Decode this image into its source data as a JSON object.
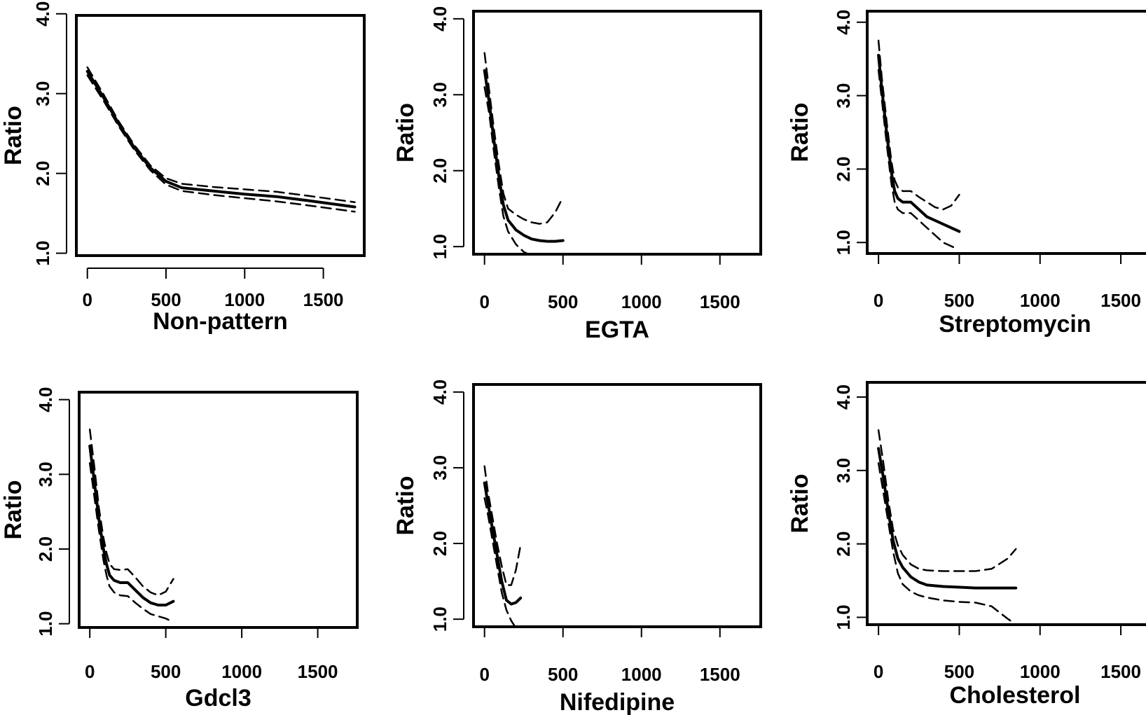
{
  "figure": {
    "panels": [
      {
        "xlabel": "Non-pattern",
        "ylabel": "Ratio"
      },
      {
        "xlabel": "EGTA",
        "ylabel": "Ratio"
      },
      {
        "xlabel": "Streptomycin",
        "ylabel": "Ratio"
      },
      {
        "xlabel": "Gdcl3",
        "ylabel": "Ratio"
      },
      {
        "xlabel": "Nifedipine",
        "ylabel": "Ratio"
      },
      {
        "xlabel": "Cholesterol",
        "ylabel": "Ratio"
      }
    ]
  },
  "chart_data": [
    {
      "type": "line",
      "title": "",
      "xlabel": "Non-pattern",
      "ylabel": "Ratio",
      "xlim": [
        -70,
        1760
      ],
      "ylim": [
        0.97,
        3.98
      ],
      "xticks": [
        0,
        500,
        1000,
        1500
      ],
      "yticks": [
        1.0,
        2.0,
        3.0,
        4.0
      ],
      "xtick_labels": [
        "0",
        "500",
        "1000",
        "1500"
      ],
      "ytick_labels": [
        "1.0",
        "2.0",
        "3.0",
        "4.0"
      ],
      "grid": false,
      "series": [
        {
          "role": "fit",
          "style": "solid",
          "x": [
            0,
            100,
            200,
            300,
            400,
            500,
            600,
            800,
            1000,
            1200,
            1400,
            1700
          ],
          "y": [
            3.28,
            2.96,
            2.62,
            2.32,
            2.07,
            1.9,
            1.82,
            1.78,
            1.74,
            1.71,
            1.66,
            1.58
          ]
        },
        {
          "role": "upper",
          "style": "dashed",
          "x": [
            0,
            100,
            200,
            300,
            400,
            500,
            600,
            800,
            1000,
            1200,
            1400,
            1700
          ],
          "y": [
            3.33,
            3.0,
            2.65,
            2.35,
            2.1,
            1.94,
            1.87,
            1.83,
            1.8,
            1.77,
            1.72,
            1.64
          ]
        },
        {
          "role": "lower",
          "style": "dashed",
          "x": [
            0,
            100,
            200,
            300,
            400,
            500,
            600,
            800,
            1000,
            1200,
            1400,
            1700
          ],
          "y": [
            3.23,
            2.92,
            2.59,
            2.29,
            2.04,
            1.86,
            1.78,
            1.73,
            1.69,
            1.65,
            1.6,
            1.52
          ]
        }
      ]
    },
    {
      "type": "line",
      "title": "",
      "xlabel": "EGTA",
      "ylabel": "Ratio",
      "xlim": [
        -70,
        1760
      ],
      "ylim": [
        0.9,
        4.1
      ],
      "xticks": [
        0,
        500,
        1000,
        1500
      ],
      "yticks": [
        1.0,
        2.0,
        3.0,
        4.0
      ],
      "xtick_labels": [
        "0",
        "500",
        "1000",
        "1500"
      ],
      "ytick_labels": [
        "1.0",
        "2.0",
        "3.0",
        "4.0"
      ],
      "grid": false,
      "series": [
        {
          "role": "fit",
          "style": "solid",
          "x": [
            0,
            30,
            60,
            90,
            120,
            150,
            200,
            250,
            300,
            350,
            400,
            450,
            500
          ],
          "y": [
            3.32,
            2.9,
            2.4,
            1.95,
            1.55,
            1.35,
            1.22,
            1.15,
            1.1,
            1.08,
            1.07,
            1.07,
            1.08
          ]
        },
        {
          "role": "upper",
          "style": "dashed",
          "x": [
            0,
            30,
            60,
            90,
            120,
            150,
            200,
            250,
            300,
            350,
            400,
            450,
            500
          ],
          "y": [
            3.55,
            3.05,
            2.55,
            2.1,
            1.7,
            1.5,
            1.42,
            1.36,
            1.32,
            1.3,
            1.32,
            1.45,
            1.65
          ]
        },
        {
          "role": "lower",
          "style": "dashed",
          "x": [
            0,
            30,
            60,
            90,
            120,
            150,
            200,
            250,
            280
          ],
          "y": [
            3.1,
            2.75,
            2.25,
            1.8,
            1.4,
            1.2,
            1.03,
            0.93,
            0.9
          ]
        }
      ]
    },
    {
      "type": "line",
      "title": "",
      "xlabel": "Streptomycin",
      "ylabel": "Ratio",
      "xlim": [
        -70,
        1760
      ],
      "ylim": [
        0.85,
        4.15
      ],
      "xticks": [
        0,
        500,
        1000,
        1500
      ],
      "yticks": [
        1.0,
        2.0,
        3.0,
        4.0
      ],
      "xtick_labels": [
        "0",
        "500",
        "1000",
        "1500"
      ],
      "ytick_labels": [
        "1.0",
        "2.0",
        "3.0",
        "4.0"
      ],
      "grid": false,
      "series": [
        {
          "role": "fit",
          "style": "solid",
          "x": [
            0,
            20,
            50,
            80,
            100,
            120,
            150,
            200,
            250,
            300,
            400,
            500
          ],
          "y": [
            3.55,
            3.1,
            2.5,
            1.95,
            1.7,
            1.6,
            1.55,
            1.55,
            1.45,
            1.35,
            1.25,
            1.15
          ]
        },
        {
          "role": "upper",
          "style": "dashed",
          "x": [
            0,
            20,
            50,
            80,
            100,
            120,
            150,
            200,
            250,
            300,
            350,
            400,
            450,
            500
          ],
          "y": [
            3.75,
            3.25,
            2.65,
            2.1,
            1.85,
            1.75,
            1.7,
            1.7,
            1.62,
            1.55,
            1.48,
            1.45,
            1.5,
            1.65
          ]
        },
        {
          "role": "lower",
          "style": "dashed",
          "x": [
            0,
            20,
            50,
            80,
            100,
            120,
            150,
            200,
            250,
            300,
            350,
            400,
            450,
            470
          ],
          "y": [
            3.35,
            2.95,
            2.35,
            1.8,
            1.55,
            1.45,
            1.4,
            1.4,
            1.3,
            1.2,
            1.1,
            1.0,
            0.95,
            0.93
          ]
        }
      ]
    },
    {
      "type": "line",
      "title": "",
      "xlabel": "Gdcl3",
      "ylabel": "Ratio",
      "xlim": [
        -70,
        1760
      ],
      "ylim": [
        0.95,
        4.1
      ],
      "xticks": [
        0,
        500,
        1000,
        1500
      ],
      "yticks": [
        1.0,
        2.0,
        3.0,
        4.0
      ],
      "xtick_labels": [
        "0",
        "500",
        "1000",
        "1500"
      ],
      "ytick_labels": [
        "1.0",
        "2.0",
        "3.0",
        "4.0"
      ],
      "grid": false,
      "series": [
        {
          "role": "fit",
          "style": "solid",
          "x": [
            0,
            30,
            60,
            90,
            110,
            130,
            160,
            200,
            250,
            300,
            350,
            400,
            450,
            500,
            550
          ],
          "y": [
            3.38,
            2.9,
            2.4,
            2.0,
            1.8,
            1.65,
            1.58,
            1.55,
            1.55,
            1.45,
            1.35,
            1.28,
            1.25,
            1.25,
            1.3
          ]
        },
        {
          "role": "upper",
          "style": "dashed",
          "x": [
            0,
            30,
            60,
            90,
            110,
            130,
            160,
            200,
            250,
            300,
            350,
            400,
            450,
            500,
            550
          ],
          "y": [
            3.6,
            3.1,
            2.55,
            2.15,
            1.95,
            1.8,
            1.73,
            1.72,
            1.73,
            1.62,
            1.5,
            1.42,
            1.38,
            1.43,
            1.6
          ]
        },
        {
          "role": "lower",
          "style": "dashed",
          "x": [
            0,
            30,
            60,
            90,
            110,
            130,
            160,
            200,
            250,
            300,
            350,
            400,
            450,
            500,
            550
          ],
          "y": [
            3.15,
            2.7,
            2.25,
            1.85,
            1.65,
            1.5,
            1.42,
            1.38,
            1.37,
            1.28,
            1.2,
            1.13,
            1.1,
            1.07,
            1.02
          ]
        }
      ]
    },
    {
      "type": "line",
      "title": "",
      "xlabel": "Nifedipine",
      "ylabel": "Ratio",
      "xlim": [
        -70,
        1760
      ],
      "ylim": [
        0.9,
        4.1
      ],
      "xticks": [
        0,
        500,
        1000,
        1500
      ],
      "yticks": [
        1.0,
        2.0,
        3.0,
        4.0
      ],
      "xtick_labels": [
        "0",
        "500",
        "1000",
        "1500"
      ],
      "ytick_labels": [
        "1.0",
        "2.0",
        "3.0",
        "4.0"
      ],
      "grid": false,
      "series": [
        {
          "role": "fit",
          "style": "solid",
          "x": [
            0,
            20,
            50,
            80,
            110,
            140,
            170,
            200,
            230
          ],
          "y": [
            2.8,
            2.55,
            2.2,
            1.85,
            1.5,
            1.25,
            1.2,
            1.22,
            1.28
          ]
        },
        {
          "role": "upper",
          "style": "dashed",
          "x": [
            0,
            20,
            50,
            80,
            110,
            140,
            170,
            200,
            230
          ],
          "y": [
            3.02,
            2.7,
            2.35,
            2.0,
            1.7,
            1.45,
            1.45,
            1.65,
            1.98
          ]
        },
        {
          "role": "lower",
          "style": "dashed",
          "x": [
            0,
            20,
            50,
            80,
            110,
            140,
            170,
            195
          ],
          "y": [
            2.6,
            2.4,
            2.05,
            1.7,
            1.35,
            1.12,
            0.98,
            0.9
          ]
        }
      ]
    },
    {
      "type": "line",
      "title": "",
      "xlabel": "Cholesterol",
      "ylabel": "Ratio",
      "xlim": [
        -70,
        1760
      ],
      "ylim": [
        0.9,
        4.2
      ],
      "xticks": [
        0,
        500,
        1000,
        1500
      ],
      "yticks": [
        1.0,
        2.0,
        3.0,
        4.0
      ],
      "xtick_labels": [
        "0",
        "500",
        "1000",
        "1500"
      ],
      "ytick_labels": [
        "1.0",
        "2.0",
        "3.0",
        "4.0"
      ],
      "grid": false,
      "series": [
        {
          "role": "fit",
          "style": "solid",
          "x": [
            0,
            30,
            60,
            90,
            120,
            150,
            200,
            250,
            300,
            400,
            500,
            600,
            700,
            850
          ],
          "y": [
            3.3,
            2.9,
            2.45,
            2.05,
            1.8,
            1.68,
            1.55,
            1.48,
            1.44,
            1.42,
            1.41,
            1.4,
            1.4,
            1.4
          ]
        },
        {
          "role": "upper",
          "style": "dashed",
          "x": [
            0,
            30,
            60,
            90,
            120,
            150,
            200,
            250,
            300,
            400,
            500,
            600,
            700,
            800,
            850
          ],
          "y": [
            3.55,
            3.1,
            2.6,
            2.2,
            1.98,
            1.85,
            1.72,
            1.66,
            1.64,
            1.63,
            1.63,
            1.63,
            1.66,
            1.8,
            1.93
          ]
        },
        {
          "role": "lower",
          "style": "dashed",
          "x": [
            0,
            30,
            60,
            90,
            120,
            150,
            200,
            250,
            300,
            400,
            500,
            600,
            700,
            800,
            840
          ],
          "y": [
            3.1,
            2.7,
            2.3,
            1.9,
            1.6,
            1.45,
            1.35,
            1.3,
            1.27,
            1.23,
            1.21,
            1.2,
            1.15,
            0.98,
            0.92
          ]
        }
      ]
    }
  ]
}
